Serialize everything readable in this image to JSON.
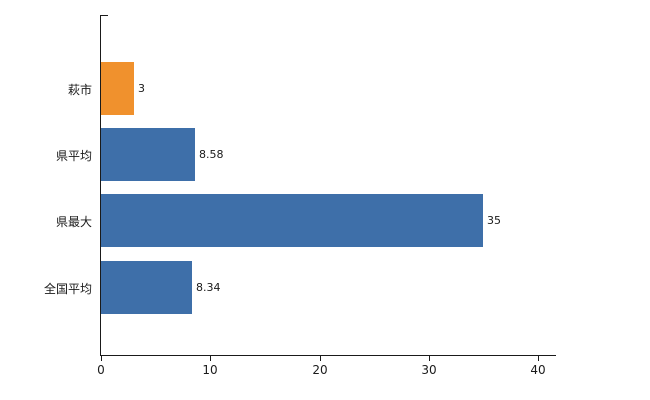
{
  "chart_data": {
    "type": "bar",
    "orientation": "horizontal",
    "title": "",
    "xlabel": "",
    "ylabel": "",
    "categories": [
      "萩市",
      "県平均",
      "県最大",
      "全国平均"
    ],
    "values": [
      3,
      8.58,
      35,
      8.34
    ],
    "value_labels": [
      "3",
      "8.58",
      "35",
      "8.34"
    ],
    "colors": [
      "#f0912d",
      "#3e6fa9",
      "#3e6fa9",
      "#3e6fa9"
    ],
    "xlim": [
      0,
      40
    ],
    "x_ticks": [
      "0",
      "10",
      "20",
      "30",
      "40"
    ],
    "x_tick_values": [
      0,
      10,
      20,
      30,
      40
    ],
    "grid": false,
    "legend": false,
    "axis_color": "#1a1a1a",
    "background_color": "#ffffff"
  }
}
